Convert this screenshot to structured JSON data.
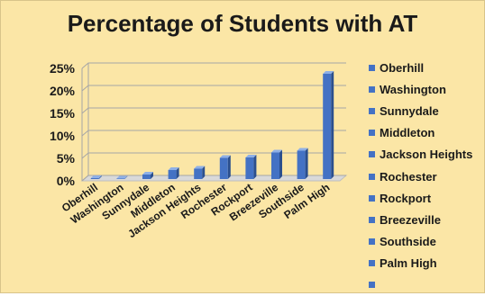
{
  "colors": {
    "background": "#fbe6a6",
    "bar_front": "#4472c4",
    "bar_side": "#2b4f8e",
    "bar_top": "#8fb0e6"
  },
  "chart_data": {
    "type": "bar",
    "title": "Percentage of Students with AT",
    "categories": [
      "Oberhill",
      "Washington",
      "Sunnydale",
      "Middleton",
      "Jackson Heights",
      "Rochester",
      "Rockport",
      "Breezeville",
      "Southside",
      "Palm High"
    ],
    "values": [
      0.2,
      0.1,
      1.0,
      2.0,
      2.3,
      4.7,
      4.8,
      5.9,
      6.3,
      23.4
    ],
    "value_format": "percent",
    "ylim": [
      0,
      25
    ],
    "yticks": [
      0,
      5,
      10,
      15,
      20,
      25
    ],
    "ytick_labels": [
      "0%",
      "5%",
      "10%",
      "15%",
      "20%",
      "25%"
    ],
    "grid": true,
    "legend_position": "right",
    "legend_entries": [
      "Oberhill",
      "Washington",
      "Sunnydale",
      "Middleton",
      "Jackson Heights",
      "Rochester",
      "Rockport",
      "Breezeville",
      "Southside",
      "Palm High",
      ""
    ]
  }
}
